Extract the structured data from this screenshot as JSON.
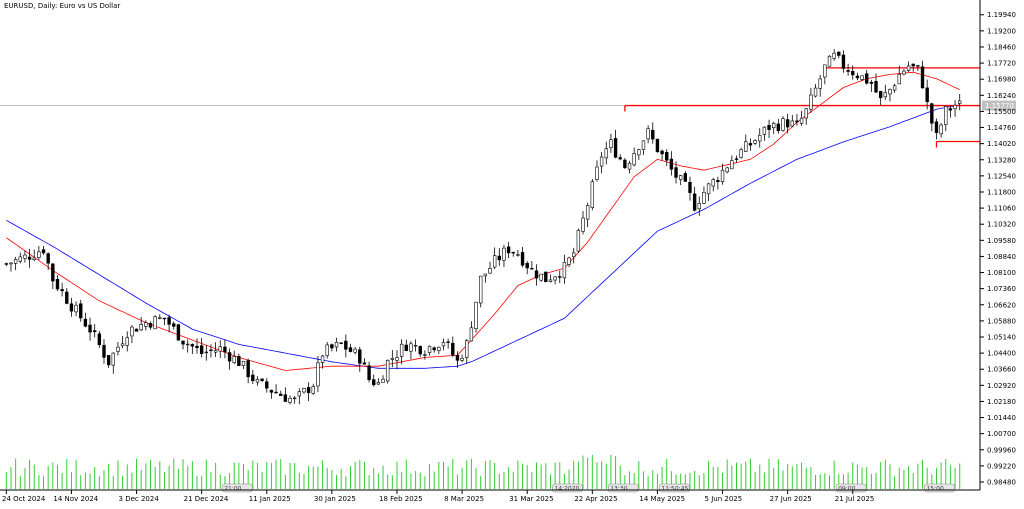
{
  "chart_data": {
    "type": "candlestick",
    "title": "EURUSD, Daily:  Euro vs US Dollar",
    "price_axis": {
      "min": 0.9848,
      "max": 1.2025,
      "ticks": [
        "1.19940",
        "1.19200",
        "1.18460",
        "1.17720",
        "1.16980",
        "1.16240",
        "1.15500",
        "1.14760",
        "1.14020",
        "1.13280",
        "1.12540",
        "1.11800",
        "1.11060",
        "1.10320",
        "1.09580",
        "1.08840",
        "1.08100",
        "1.07360",
        "1.06620",
        "1.05880",
        "1.05140",
        "1.04400",
        "1.03660",
        "1.02920",
        "1.02180",
        "1.01440",
        "1.00700",
        "0.99960",
        "0.99220",
        "0.98480"
      ],
      "current_price": 1.1577,
      "current_price_label": "1.15770"
    },
    "x_axis": {
      "n_bars": 209,
      "labels": [
        {
          "i": 0,
          "text": "24 Oct 2024"
        },
        {
          "i": 14,
          "text": "14 Nov 2024"
        },
        {
          "i": 28,
          "text": "3 Dec 2024"
        },
        {
          "i": 42,
          "text": "21 Dec 2024"
        },
        {
          "i": 56,
          "text": "11 Jan 2025"
        },
        {
          "i": 70,
          "text": "30 Jan 2025"
        },
        {
          "i": 84,
          "text": "18 Feb 2025"
        },
        {
          "i": 98,
          "text": "8 Mar 2025"
        },
        {
          "i": 112,
          "text": "31 Mar 2025"
        },
        {
          "i": 126,
          "text": "22 Apr 2025"
        },
        {
          "i": 140,
          "text": "14 May 2025"
        },
        {
          "i": 154,
          "text": "5 Jun 2025"
        },
        {
          "i": 168,
          "text": "27 Jun 2025"
        },
        {
          "i": 182,
          "text": "21 Jul 2025"
        }
      ]
    },
    "keypoints": [
      [
        0,
        1.085
      ],
      [
        4,
        1.088
      ],
      [
        8,
        1.092
      ],
      [
        10,
        1.078
      ],
      [
        14,
        1.066
      ],
      [
        18,
        1.055
      ],
      [
        22,
        1.04
      ],
      [
        26,
        1.054
      ],
      [
        30,
        1.058
      ],
      [
        34,
        1.06
      ],
      [
        38,
        1.05
      ],
      [
        42,
        1.044
      ],
      [
        46,
        1.046
      ],
      [
        50,
        1.04
      ],
      [
        54,
        1.03
      ],
      [
        58,
        1.026
      ],
      [
        62,
        1.022
      ],
      [
        66,
        1.03
      ],
      [
        68,
        1.044
      ],
      [
        72,
        1.048
      ],
      [
        76,
        1.042
      ],
      [
        78,
        1.032
      ],
      [
        80,
        1.03
      ],
      [
        82,
        1.04
      ],
      [
        86,
        1.048
      ],
      [
        90,
        1.046
      ],
      [
        94,
        1.05
      ],
      [
        97,
        1.04
      ],
      [
        99,
        1.048
      ],
      [
        102,
        1.078
      ],
      [
        105,
        1.086
      ],
      [
        108,
        1.092
      ],
      [
        110,
        1.09
      ],
      [
        113,
        1.082
      ],
      [
        116,
        1.078
      ],
      [
        120,
        1.083
      ],
      [
        122,
        1.09
      ],
      [
        124,
        1.105
      ],
      [
        126,
        1.12
      ],
      [
        128,
        1.135
      ],
      [
        130,
        1.14
      ],
      [
        133,
        1.13
      ],
      [
        136,
        1.14
      ],
      [
        138,
        1.145
      ],
      [
        140,
        1.138
      ],
      [
        143,
        1.128
      ],
      [
        146,
        1.12
      ],
      [
        148,
        1.112
      ],
      [
        150,
        1.118
      ],
      [
        153,
        1.125
      ],
      [
        156,
        1.133
      ],
      [
        160,
        1.14
      ],
      [
        164,
        1.148
      ],
      [
        168,
        1.15
      ],
      [
        170,
        1.148
      ],
      [
        172,
        1.155
      ],
      [
        174,
        1.165
      ],
      [
        176,
        1.175
      ],
      [
        178,
        1.18
      ],
      [
        180,
        1.176
      ],
      [
        183,
        1.172
      ],
      [
        186,
        1.168
      ],
      [
        188,
        1.16
      ],
      [
        190,
        1.165
      ],
      [
        192,
        1.172
      ],
      [
        194,
        1.176
      ],
      [
        196,
        1.174
      ],
      [
        197,
        1.168
      ],
      [
        198,
        1.158
      ],
      [
        199,
        1.15
      ],
      [
        200,
        1.143
      ],
      [
        202,
        1.155
      ],
      [
        204,
        1.158
      ],
      [
        205,
        1.1577
      ]
    ],
    "ma_slow": [
      [
        0,
        1.105
      ],
      [
        10,
        1.093
      ],
      [
        20,
        1.08
      ],
      [
        30,
        1.067
      ],
      [
        40,
        1.055
      ],
      [
        50,
        1.048
      ],
      [
        60,
        1.044
      ],
      [
        70,
        1.04
      ],
      [
        80,
        1.037
      ],
      [
        90,
        1.037
      ],
      [
        97,
        1.038
      ],
      [
        100,
        1.04
      ],
      [
        110,
        1.05
      ],
      [
        120,
        1.06
      ],
      [
        130,
        1.08
      ],
      [
        140,
        1.1
      ],
      [
        150,
        1.11
      ],
      [
        160,
        1.122
      ],
      [
        170,
        1.133
      ],
      [
        180,
        1.141
      ],
      [
        190,
        1.148
      ],
      [
        200,
        1.156
      ],
      [
        205,
        1.158
      ]
    ],
    "ma_fast": [
      [
        0,
        1.097
      ],
      [
        10,
        1.082
      ],
      [
        20,
        1.068
      ],
      [
        30,
        1.058
      ],
      [
        40,
        1.05
      ],
      [
        50,
        1.042
      ],
      [
        60,
        1.036
      ],
      [
        70,
        1.038
      ],
      [
        80,
        1.038
      ],
      [
        90,
        1.042
      ],
      [
        97,
        1.043
      ],
      [
        100,
        1.05
      ],
      [
        105,
        1.062
      ],
      [
        110,
        1.075
      ],
      [
        115,
        1.08
      ],
      [
        120,
        1.083
      ],
      [
        125,
        1.095
      ],
      [
        130,
        1.11
      ],
      [
        135,
        1.125
      ],
      [
        140,
        1.133
      ],
      [
        145,
        1.13
      ],
      [
        150,
        1.128
      ],
      [
        160,
        1.133
      ],
      [
        165,
        1.14
      ],
      [
        170,
        1.15
      ],
      [
        175,
        1.158
      ],
      [
        180,
        1.166
      ],
      [
        185,
        1.17
      ],
      [
        190,
        1.172
      ],
      [
        195,
        1.173
      ],
      [
        200,
        1.17
      ],
      [
        205,
        1.165
      ]
    ],
    "levels": [
      {
        "price": 1.175,
        "from_i": 176
      },
      {
        "price": 1.1577,
        "from_i": 133
      },
      {
        "price": 1.1412,
        "from_i": 200
      }
    ],
    "volume_tags": [
      {
        "i": 49,
        "text": "21:00"
      },
      {
        "i": 120,
        "text": "14:2020"
      },
      {
        "i": 132,
        "text": "13:30"
      },
      {
        "i": 143,
        "text": "11:50:45"
      },
      {
        "i": 181,
        "text": "09:00"
      },
      {
        "i": 200,
        "text": "15:00"
      }
    ],
    "colors": {
      "candle_up": "#ffffff",
      "candle_down": "#000000",
      "candle_outline": "#000000",
      "ma_fast": "#ff0000",
      "ma_slow": "#0000ff",
      "level": "#ff0000",
      "volume": "#32cd32",
      "grid": "#c0c0c0"
    }
  }
}
